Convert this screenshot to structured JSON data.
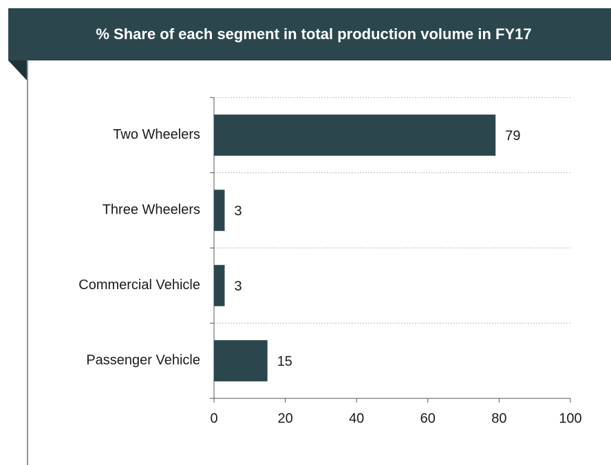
{
  "chart_data": {
    "type": "bar",
    "orientation": "horizontal",
    "title": "% Share of each segment in total production volume in FY17",
    "categories": [
      "Two Wheelers",
      "Three Wheelers",
      "Commercial Vehicle",
      "Passenger Vehicle"
    ],
    "values": [
      79,
      3,
      3,
      15
    ],
    "color": "#2b474d",
    "xlim": [
      0,
      100
    ],
    "xticks": [
      0,
      20,
      40,
      60,
      80,
      100
    ],
    "grid": true
  }
}
